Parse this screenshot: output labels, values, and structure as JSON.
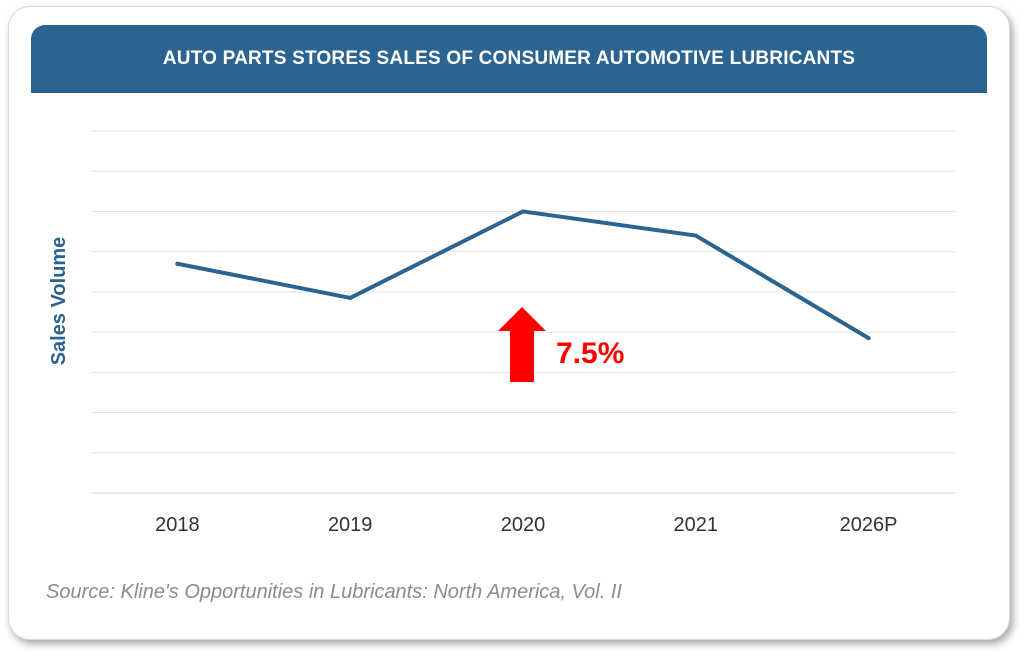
{
  "chart_data": {
    "type": "line",
    "title": "AUTO PARTS STORES SALES OF CONSUMER AUTOMOTIVE LUBRICANTS",
    "xlabel": "",
    "ylabel": "Sales Volume",
    "categories": [
      "2018",
      "2019",
      "2020",
      "2021",
      "2026P"
    ],
    "series": [
      {
        "values": [
          5.7,
          4.85,
          7.0,
          6.4,
          3.85
        ]
      }
    ],
    "ylim": [
      0,
      9
    ],
    "grid": true,
    "annotation": {
      "text": "7.5%",
      "direction": "up",
      "color": "#ff0000"
    },
    "colors": {
      "line": "#2b6491",
      "header": "#2b6491",
      "annotation": "#ff0000"
    }
  },
  "source": "Source: Kline's Opportunities in Lubricants: North America, Vol. II"
}
